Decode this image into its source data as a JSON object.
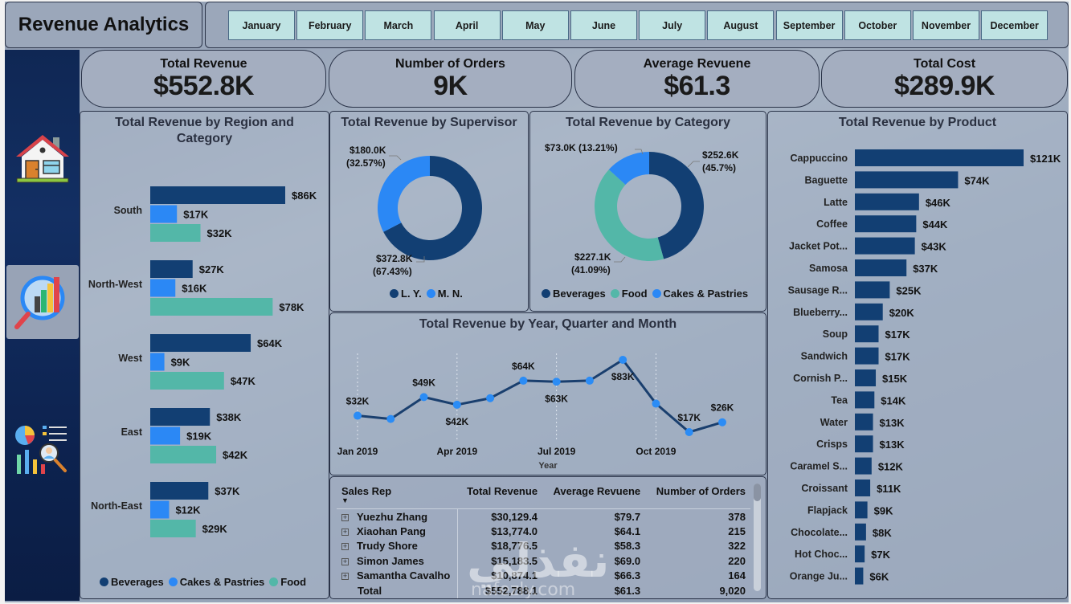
{
  "header": {
    "title": "Revenue Analytics",
    "months": [
      "January",
      "February",
      "March",
      "April",
      "May",
      "June",
      "July",
      "August",
      "September",
      "October",
      "November",
      "December"
    ]
  },
  "sidebar": {
    "items": [
      {
        "name": "home",
        "icon": "house-icon",
        "active": false
      },
      {
        "name": "analytics",
        "icon": "chart-magnifier-icon",
        "active": true
      },
      {
        "name": "reports",
        "icon": "report-person-icon",
        "active": false
      }
    ]
  },
  "kpis": [
    {
      "label": "Total Revenue",
      "value": "$552.8K"
    },
    {
      "label": "Number of Orders",
      "value": "9K"
    },
    {
      "label": "Average Revuene",
      "value": "$61.3"
    },
    {
      "label": "Total Cost",
      "value": "$289.9K"
    }
  ],
  "colors": {
    "beverages": "#123f73",
    "cakes": "#2b88f5",
    "food": "#53b7a8",
    "line": "#1a3f6e",
    "marker": "#2b8cf5",
    "product_bar": "#123f73"
  },
  "chart_data": [
    {
      "id": "region",
      "type": "bar",
      "orientation": "horizontal",
      "title": "Total Revenue by Region and Category",
      "categories": [
        "South",
        "North-West",
        "West",
        "East",
        "North-East"
      ],
      "series": [
        {
          "name": "Beverages",
          "values": [
            86,
            27,
            64,
            38,
            37
          ],
          "labels": [
            "$86K",
            "$27K",
            "$64K",
            "$38K",
            "$37K"
          ]
        },
        {
          "name": "Cakes & Pastries",
          "values": [
            17,
            16,
            9,
            19,
            12
          ],
          "labels": [
            "$17K",
            "$16K",
            "$9K",
            "$19K",
            "$12K"
          ]
        },
        {
          "name": "Food",
          "values": [
            32,
            78,
            47,
            42,
            29
          ],
          "labels": [
            "$32K",
            "$78K",
            "$47K",
            "$42K",
            "$29K"
          ]
        }
      ],
      "unit": "K USD",
      "legend": [
        "Beverages",
        "Cakes & Pastries",
        "Food"
      ],
      "legend_position": "bottom"
    },
    {
      "id": "supervisor",
      "type": "pie",
      "donut": true,
      "title": "Total Revenue by Supervisor",
      "slices": [
        {
          "name": "L. Y.",
          "value": 372.8,
          "label": "$372.8K",
          "pct": "(67.43%)"
        },
        {
          "name": "M. N.",
          "value": 180.0,
          "label": "$180.0K",
          "pct": "(32.57%)"
        }
      ],
      "legend": [
        "L. Y.",
        "M. N."
      ],
      "legend_position": "bottom"
    },
    {
      "id": "category",
      "type": "pie",
      "donut": true,
      "title": "Total Revenue by Category",
      "slices": [
        {
          "name": "Beverages",
          "value": 252.6,
          "label": "$252.6K",
          "pct": "(45.7%)"
        },
        {
          "name": "Food",
          "value": 227.1,
          "label": "$227.1K",
          "pct": "(41.09%)"
        },
        {
          "name": "Cakes & Pastries",
          "value": 73.0,
          "label": "$73.0K",
          "pct": "(13.21%)"
        }
      ],
      "legend": [
        "Beverages",
        "Food",
        "Cakes & Pastries"
      ],
      "legend_position": "bottom"
    },
    {
      "id": "trend",
      "type": "line",
      "title": "Total Revenue by Year, Quarter and Month",
      "xlabel": "Year",
      "x": [
        "Jan 2019",
        "Feb 2019",
        "Mar 2019",
        "Apr 2019",
        "May 2019",
        "Jun 2019",
        "Jul 2019",
        "Aug 2019",
        "Sep 2019",
        "Oct 2019",
        "Nov 2019",
        "Dec 2019"
      ],
      "x_ticks": [
        "Jan 2019",
        "Apr 2019",
        "Jul 2019",
        "Oct 2019"
      ],
      "values": [
        32,
        29,
        49,
        42,
        48,
        64,
        63,
        64,
        83,
        43,
        17,
        26
      ],
      "data_labels": [
        {
          "index": 0,
          "text": "$32K",
          "pos": "above"
        },
        {
          "index": 2,
          "text": "$49K",
          "pos": "above"
        },
        {
          "index": 3,
          "text": "$42K",
          "pos": "below"
        },
        {
          "index": 5,
          "text": "$64K",
          "pos": "above"
        },
        {
          "index": 6,
          "text": "$63K",
          "pos": "below"
        },
        {
          "index": 8,
          "text": "$83K",
          "pos": "below"
        },
        {
          "index": 10,
          "text": "$17K",
          "pos": "above"
        },
        {
          "index": 11,
          "text": "$26K",
          "pos": "above"
        }
      ],
      "ylim": [
        0,
        90
      ],
      "unit": "K USD"
    },
    {
      "id": "product",
      "type": "bar",
      "orientation": "horizontal",
      "title": "Total Revenue by Product",
      "categories": [
        "Cappuccino",
        "Baguette",
        "Latte",
        "Coffee",
        "Jacket Pot...",
        "Samosa",
        "Sausage R...",
        "Blueberry...",
        "Soup",
        "Sandwich",
        "Cornish P...",
        "Tea",
        "Water",
        "Crisps",
        "Caramel S...",
        "Croissant",
        "Flapjack",
        "Chocolate...",
        "Hot Choc...",
        "Orange Ju..."
      ],
      "values": [
        121,
        74,
        46,
        44,
        43,
        37,
        25,
        20,
        17,
        17,
        15,
        14,
        13,
        13,
        12,
        11,
        9,
        8,
        7,
        6
      ],
      "labels": [
        "$121K",
        "$74K",
        "$46K",
        "$44K",
        "$43K",
        "$37K",
        "$25K",
        "$20K",
        "$17K",
        "$17K",
        "$15K",
        "$14K",
        "$13K",
        "$13K",
        "$12K",
        "$11K",
        "$9K",
        "$8K",
        "$7K",
        "$6K"
      ],
      "unit": "K USD"
    },
    {
      "id": "sales_rep_table",
      "type": "table",
      "columns": [
        "Sales Rep",
        "Total Revenue",
        "Average Revuene",
        "Number of Orders"
      ],
      "rows": [
        [
          "Yuezhu Zhang",
          "$30,129.4",
          "$79.7",
          "378"
        ],
        [
          "Xiaohan Pang",
          "$13,774.0",
          "$64.1",
          "215"
        ],
        [
          "Trudy Shore",
          "$18,776.5",
          "$58.3",
          "322"
        ],
        [
          "Simon James",
          "$15,183.5",
          "$69.0",
          "220"
        ],
        [
          "Samantha Cavalho",
          "$10,874.1",
          "$66.3",
          "164"
        ]
      ],
      "total": [
        "Total",
        "$552,788.1",
        "$61.3",
        "9,020"
      ]
    }
  ],
  "watermark": {
    "arabic": "نفذلي",
    "latin": "nafezly.com"
  }
}
